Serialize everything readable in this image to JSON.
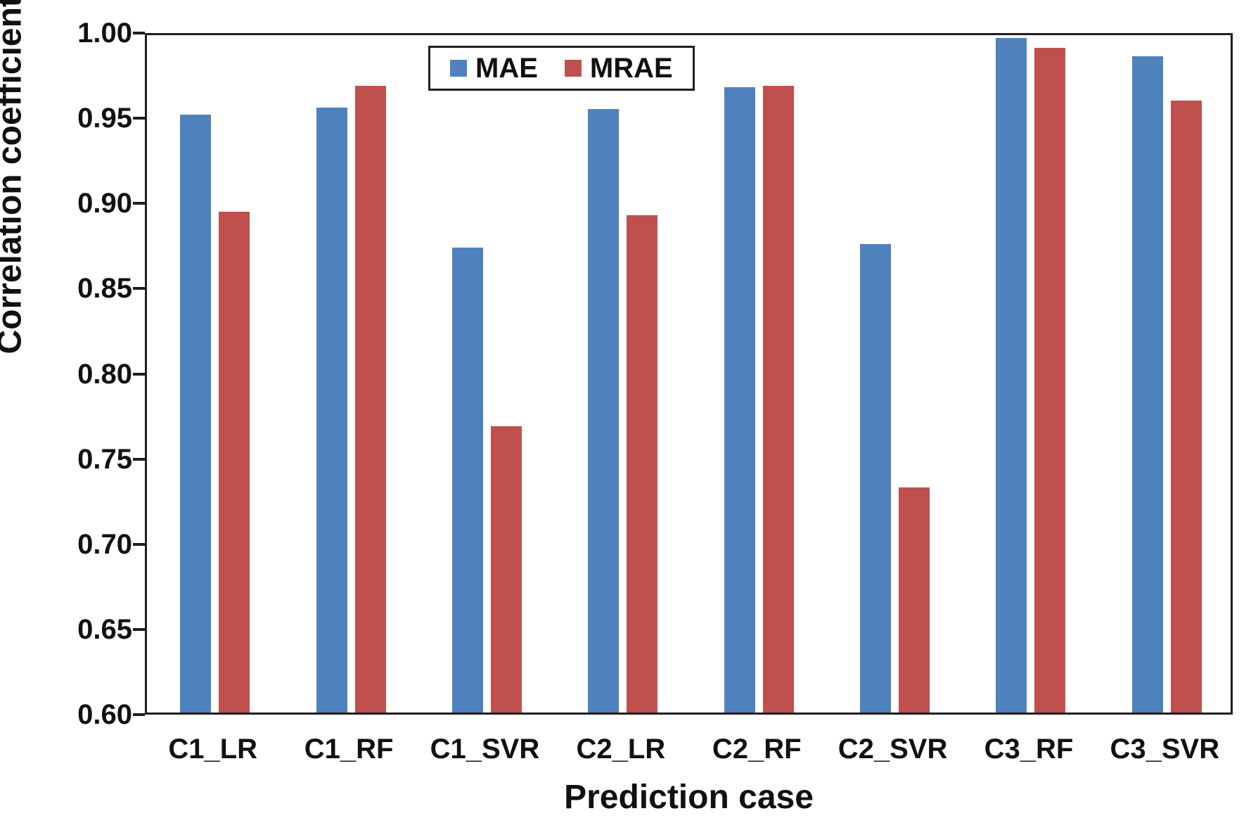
{
  "chart_data": {
    "type": "bar",
    "title": "",
    "xlabel": "Prediction case",
    "ylabel": "Correlation coefficient",
    "categories": [
      "C1_LR",
      "C1_RF",
      "C1_SVR",
      "C2_LR",
      "C2_RF",
      "C2_SVR",
      "C3_RF",
      "C3_SVR"
    ],
    "series": [
      {
        "name": "MAE",
        "color": "#4F81BD",
        "values": [
          0.951,
          0.955,
          0.873,
          0.954,
          0.967,
          0.875,
          0.996,
          0.985
        ]
      },
      {
        "name": "MRAE",
        "color": "#C0504D",
        "values": [
          0.894,
          0.968,
          0.768,
          0.892,
          0.968,
          0.732,
          0.99,
          0.959
        ]
      }
    ],
    "ylim": [
      0.6,
      1.0
    ],
    "ytick_step": 0.05,
    "ytick_labels": [
      "0.60",
      "0.65",
      "0.70",
      "0.75",
      "0.80",
      "0.85",
      "0.90",
      "0.95",
      "1.00"
    ],
    "grid": false,
    "legend_position": "inside-top",
    "axis_color": "#1f1f1f",
    "text_color": "#111111"
  }
}
